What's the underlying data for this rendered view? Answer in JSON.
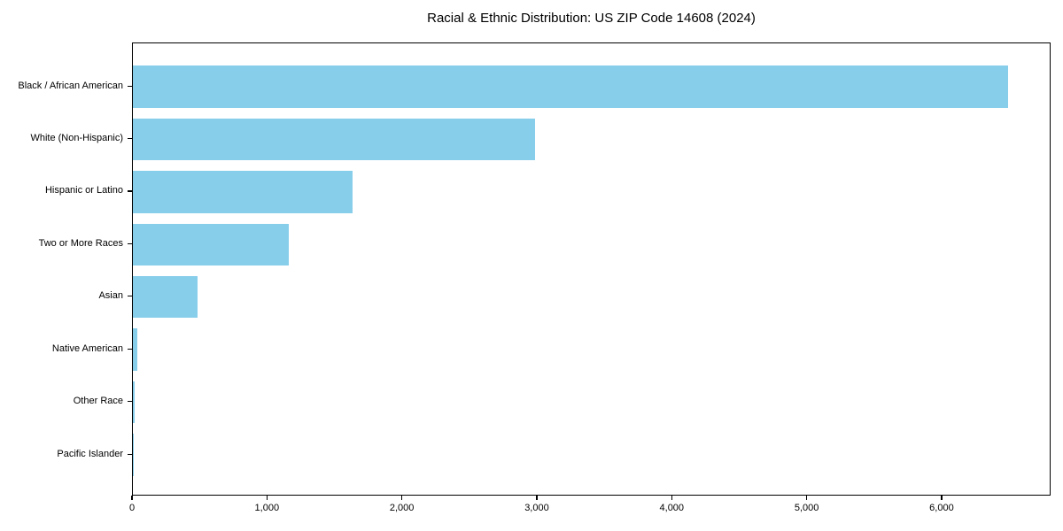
{
  "chart_data": {
    "type": "bar",
    "orientation": "horizontal",
    "title": "Racial & Ethnic Distribution: US ZIP Code 14608 (2024)",
    "categories": [
      "Black / African American",
      "White (Non-Hispanic)",
      "Hispanic or Latino",
      "Two or More Races",
      "Asian",
      "Native American",
      "Other Race",
      "Pacific Islander"
    ],
    "values": [
      6484,
      2982,
      1630,
      1157,
      477,
      33,
      16,
      5
    ],
    "xlabel": "",
    "ylabel": "",
    "xlim": [
      0,
      6808
    ],
    "x_ticks": [
      0,
      1000,
      2000,
      3000,
      4000,
      5000,
      6000
    ],
    "x_tick_labels": [
      "0",
      "1,000",
      "2,000",
      "3,000",
      "4,000",
      "5,000",
      "6,000"
    ],
    "bar_color": "#87CEEB",
    "grid": false,
    "legend": null
  }
}
